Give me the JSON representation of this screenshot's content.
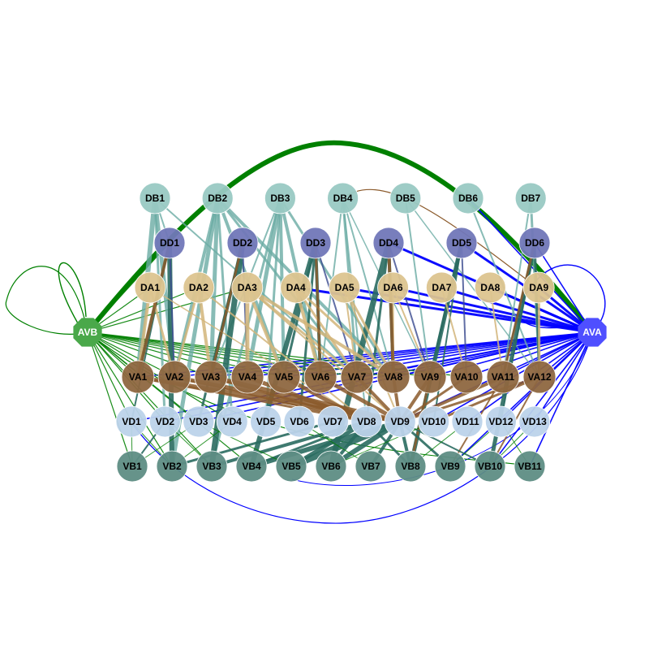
{
  "colors": {
    "background": "#ffffff",
    "avb_fill": "#4aa84a",
    "ava_fill": "#4f4fff",
    "db": "#99c9c3",
    "dd": "#7177b8",
    "da": "#dcc48f",
    "va": "#8e6740",
    "vd": "#bcd3ea",
    "vb": "#5e8d84",
    "edge_green": "#008000",
    "edge_blue": "#0000ff",
    "edge_teal": "#6aaba4",
    "edge_darkteal": "#2a6b60",
    "edge_tan": "#d2b57a",
    "edge_brown": "#8b5a2b",
    "edge_navy": "#3a4a8f",
    "label_dark": "#000000",
    "label_light": "#ffffff"
  },
  "hubs": [
    {
      "id": "AVB",
      "label": "AVB"
    },
    {
      "id": "AVA",
      "label": "AVA"
    }
  ],
  "groups": {
    "DB": [
      "DB1",
      "DB2",
      "DB3",
      "DB4",
      "DB5",
      "DB6",
      "DB7"
    ],
    "DD": [
      "DD1",
      "DD2",
      "DD3",
      "DD4",
      "DD5",
      "DD6"
    ],
    "DA": [
      "DA1",
      "DA2",
      "DA3",
      "DA4",
      "DA5",
      "DA6",
      "DA7",
      "DA8",
      "DA9"
    ],
    "VA": [
      "VA1",
      "VA2",
      "VA3",
      "VA4",
      "VA5",
      "VA6",
      "VA7",
      "VA8",
      "VA9",
      "VA10",
      "VA11",
      "VA12"
    ],
    "VD": [
      "VD1",
      "VD2",
      "VD3",
      "VD4",
      "VD5",
      "VD6",
      "VD7",
      "VD8",
      "VD9",
      "VD10",
      "VD11",
      "VD12",
      "VD13"
    ],
    "VB": [
      "VB1",
      "VB2",
      "VB3",
      "VB4",
      "VB5",
      "VB6",
      "VB7",
      "VB8",
      "VB9",
      "VB10",
      "VB11"
    ]
  }
}
